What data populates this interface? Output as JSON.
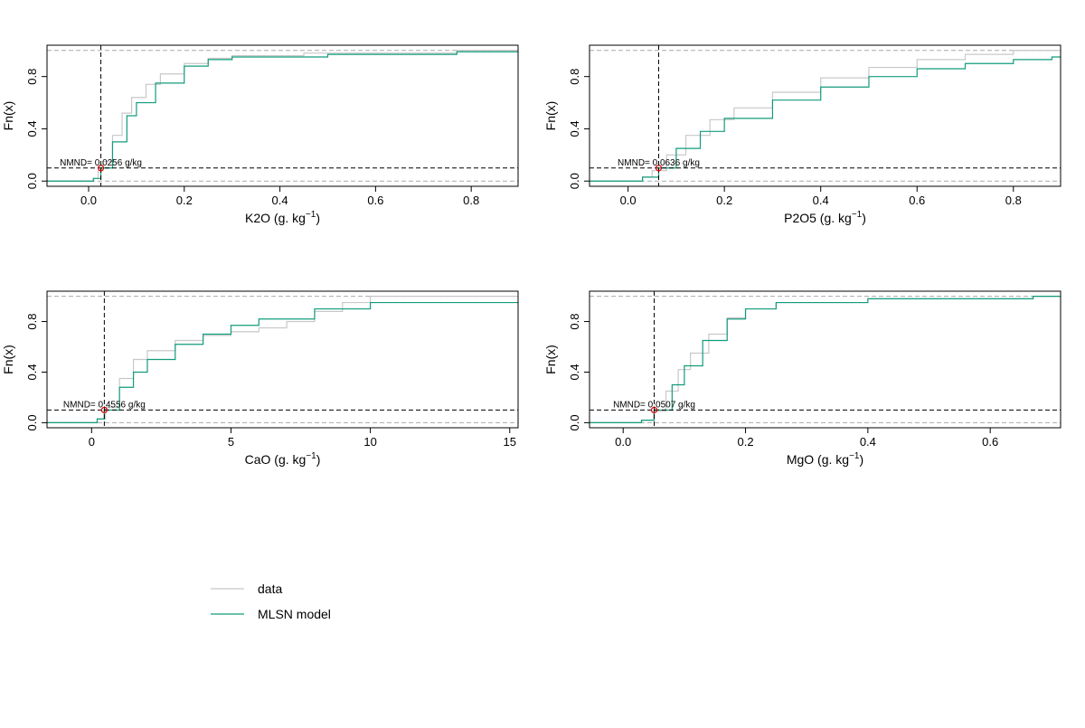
{
  "colors": {
    "data": "#c8c8c8",
    "model": "#129c7c",
    "point": "#e00000"
  },
  "legend": {
    "items": [
      {
        "label": "data",
        "series": "data"
      },
      {
        "label": "MLSN model",
        "series": "model"
      }
    ],
    "placement": "bottom-left"
  },
  "chart_data": [
    {
      "type": "line",
      "ylabel": "Fn(x)",
      "xlabel_pre": "K2O (g. kg",
      "xlabel_sup": "−1",
      "xlabel_post": ")",
      "xlim": [
        -0.087,
        0.898
      ],
      "ylim": [
        0,
        1
      ],
      "xticks": [
        0,
        0.2,
        0.4,
        0.6,
        0.8
      ],
      "xtick_labels": [
        "0.0",
        "0.2",
        "0.4",
        "0.6",
        "0.8"
      ],
      "yticks": [
        0,
        0.4,
        0.8
      ],
      "ytick_labels": [
        "0.0",
        "0.4",
        "0.8"
      ],
      "nmnd": 0.0256,
      "threshold": 0.1,
      "annotation": "NMND= 0.0256 g/kg",
      "series": [
        {
          "name": "data",
          "x": [
            0,
            0.01,
            0.02,
            0.03,
            0.05,
            0.07,
            0.09,
            0.12,
            0.15,
            0.2,
            0.25,
            0.3,
            0.45,
            0.77
          ],
          "y": [
            0,
            0.02,
            0.08,
            0.15,
            0.35,
            0.52,
            0.64,
            0.74,
            0.82,
            0.9,
            0.94,
            0.96,
            0.98,
            1.0
          ]
        },
        {
          "name": "model",
          "x": [
            0,
            0.01,
            0.0256,
            0.05,
            0.08,
            0.1,
            0.14,
            0.2,
            0.25,
            0.3,
            0.5,
            0.77
          ],
          "y": [
            0,
            0.02,
            0.1,
            0.3,
            0.5,
            0.6,
            0.75,
            0.88,
            0.93,
            0.95,
            0.97,
            0.99
          ]
        }
      ]
    },
    {
      "type": "line",
      "ylabel": "Fn(x)",
      "xlabel_pre": "P2O5 (g. kg",
      "xlabel_sup": "−1",
      "xlabel_post": ")",
      "xlim": [
        -0.08,
        0.898
      ],
      "ylim": [
        0,
        1
      ],
      "xticks": [
        0,
        0.2,
        0.4,
        0.6,
        0.8
      ],
      "xtick_labels": [
        "0.0",
        "0.2",
        "0.4",
        "0.6",
        "0.8"
      ],
      "yticks": [
        0,
        0.4,
        0.8
      ],
      "ytick_labels": [
        "0.0",
        "0.4",
        "0.8"
      ],
      "nmnd": 0.0636,
      "threshold": 0.1,
      "annotation": "NMND= 0.0636 g/kg",
      "series": [
        {
          "name": "data",
          "x": [
            0,
            0.03,
            0.05,
            0.08,
            0.12,
            0.17,
            0.22,
            0.3,
            0.4,
            0.5,
            0.6,
            0.7,
            0.8
          ],
          "y": [
            0,
            0.03,
            0.08,
            0.2,
            0.35,
            0.47,
            0.56,
            0.68,
            0.79,
            0.87,
            0.93,
            0.97,
            1.0
          ]
        },
        {
          "name": "model",
          "x": [
            0,
            0.03,
            0.0636,
            0.1,
            0.15,
            0.2,
            0.3,
            0.4,
            0.5,
            0.6,
            0.7,
            0.8,
            0.88
          ],
          "y": [
            0,
            0.03,
            0.1,
            0.25,
            0.38,
            0.48,
            0.62,
            0.72,
            0.8,
            0.86,
            0.9,
            0.93,
            0.95
          ]
        }
      ]
    },
    {
      "type": "line",
      "ylabel": "Fn(x)",
      "xlabel_pre": "CaO (g. kg",
      "xlabel_sup": "−1",
      "xlabel_post": ")",
      "xlim": [
        -1.6,
        15.3
      ],
      "ylim": [
        0,
        1
      ],
      "xticks": [
        0,
        5,
        10,
        15
      ],
      "xtick_labels": [
        "0",
        "5",
        "10",
        "15"
      ],
      "yticks": [
        0,
        0.4,
        0.8
      ],
      "ytick_labels": [
        "0.0",
        "0.4",
        "0.8"
      ],
      "nmnd": 0.4556,
      "threshold": 0.1,
      "annotation": "NMND= 0.4556 g/kg",
      "series": [
        {
          "name": "data",
          "x": [
            0,
            0.2,
            0.5,
            1,
            1.5,
            2,
            3,
            4,
            5,
            6,
            7,
            8,
            9,
            10
          ],
          "y": [
            0,
            0.03,
            0.12,
            0.35,
            0.5,
            0.57,
            0.65,
            0.69,
            0.72,
            0.75,
            0.8,
            0.88,
            0.95,
            1.0
          ]
        },
        {
          "name": "model",
          "x": [
            0,
            0.2,
            0.4556,
            1,
            1.5,
            2,
            3,
            4,
            5,
            6,
            8,
            10
          ],
          "y": [
            0,
            0.03,
            0.1,
            0.28,
            0.4,
            0.5,
            0.62,
            0.7,
            0.77,
            0.82,
            0.9,
            0.95
          ]
        }
      ]
    },
    {
      "type": "line",
      "ylabel": "Fn(x)",
      "xlabel_pre": "MgO (g. kg",
      "xlabel_sup": "−1",
      "xlabel_post": ")",
      "xlim": [
        -0.055,
        0.715
      ],
      "ylim": [
        0,
        1
      ],
      "xticks": [
        0,
        0.2,
        0.4,
        0.6
      ],
      "xtick_labels": [
        "0.0",
        "0.2",
        "0.4",
        "0.6"
      ],
      "yticks": [
        0,
        0.4,
        0.8
      ],
      "ytick_labels": [
        "0.0",
        "0.4",
        "0.8"
      ],
      "nmnd": 0.0507,
      "threshold": 0.1,
      "annotation": "NMND= 0.0507 g/kg",
      "series": [
        {
          "name": "data",
          "x": [
            0,
            0.03,
            0.05,
            0.07,
            0.09,
            0.11,
            0.14,
            0.17,
            0.2,
            0.25,
            0.4,
            0.67
          ],
          "y": [
            0,
            0.02,
            0.09,
            0.25,
            0.42,
            0.55,
            0.7,
            0.83,
            0.9,
            0.95,
            0.98,
            1.0
          ]
        },
        {
          "name": "model",
          "x": [
            0,
            0.03,
            0.0507,
            0.08,
            0.1,
            0.13,
            0.17,
            0.2,
            0.25,
            0.4,
            0.67
          ],
          "y": [
            0,
            0.02,
            0.1,
            0.3,
            0.45,
            0.65,
            0.82,
            0.9,
            0.95,
            0.98,
            1.0
          ]
        }
      ]
    }
  ]
}
